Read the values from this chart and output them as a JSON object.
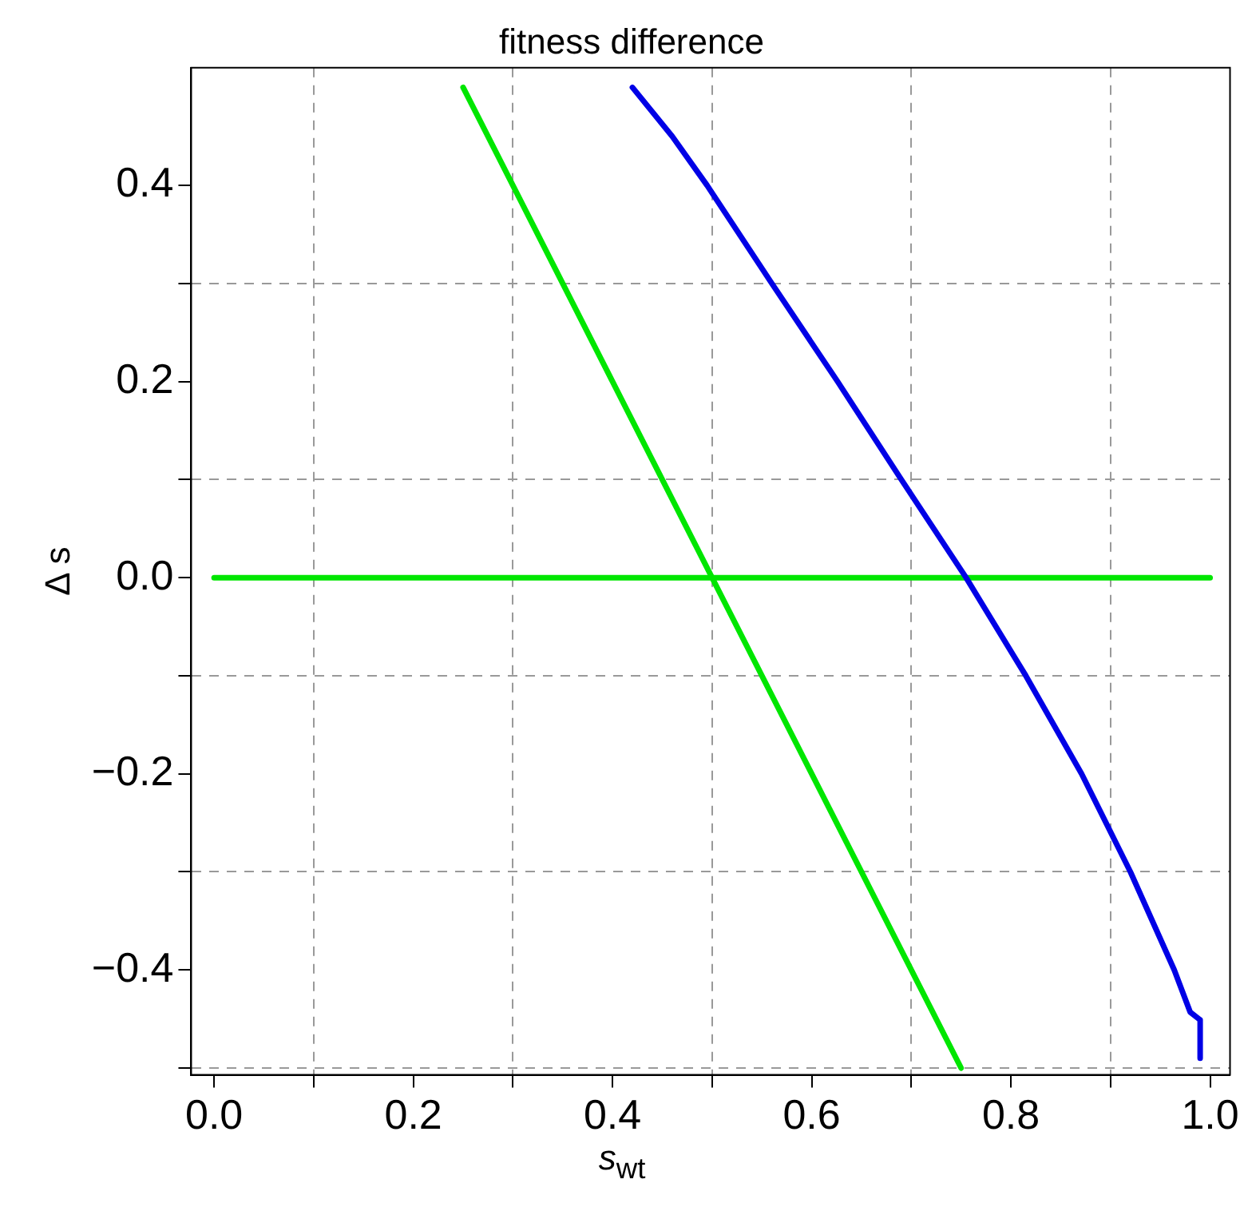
{
  "chart_data": {
    "type": "line",
    "title": "fitness difference",
    "xlabel": "s$_{wt}$",
    "ylabel": "Δ s",
    "xlim": [
      -0.023,
      1.02
    ],
    "ylim": [
      -0.507,
      0.52
    ],
    "xticks": [
      {
        "value": 0,
        "label": "0.0"
      },
      {
        "value": 0.1,
        "label": null
      },
      {
        "value": 0.2,
        "label": "0.2"
      },
      {
        "value": 0.3,
        "label": null
      },
      {
        "value": 0.4,
        "label": "0.4"
      },
      {
        "value": 0.5,
        "label": null
      },
      {
        "value": 0.6,
        "label": "0.6"
      },
      {
        "value": 0.7,
        "label": null
      },
      {
        "value": 0.8,
        "label": "0.8"
      },
      {
        "value": 0.9,
        "label": null
      },
      {
        "value": 1,
        "label": "1.0"
      }
    ],
    "yticks": [
      {
        "value": -0.5,
        "label": null
      },
      {
        "value": -0.4,
        "label": "−0.4"
      },
      {
        "value": -0.3,
        "label": null
      },
      {
        "value": -0.2,
        "label": "−0.2"
      },
      {
        "value": -0.1,
        "label": null
      },
      {
        "value": 0,
        "label": "0.0"
      },
      {
        "value": 0.1,
        "label": null
      },
      {
        "value": 0.2,
        "label": "0.2"
      },
      {
        "value": 0.3,
        "label": null
      },
      {
        "value": 0.4,
        "label": "0.4"
      }
    ],
    "grid": true,
    "legend": false,
    "marker": "none",
    "line_style": "solid",
    "series": [
      {
        "color": "#00e600",
        "x": [
          0.25,
          0.75
        ],
        "values": [
          0.5,
          -0.5
        ]
      },
      {
        "color": "#0000e6",
        "x": [
          0.42,
          0.46,
          0.495,
          0.56,
          0.626,
          0.69,
          0.755,
          0.815,
          0.871,
          0.92,
          0.964,
          0.98,
          0.99,
          0.99
        ],
        "values": [
          0.5,
          0.45,
          0.4,
          0.3,
          0.2,
          0.1,
          0,
          -0.1,
          -0.2,
          -0.3,
          -0.4,
          -0.443,
          -0.451,
          -0.49
        ]
      },
      {
        "color": "#00e600",
        "x": [
          0,
          1
        ],
        "values": [
          0,
          0
        ]
      }
    ]
  }
}
